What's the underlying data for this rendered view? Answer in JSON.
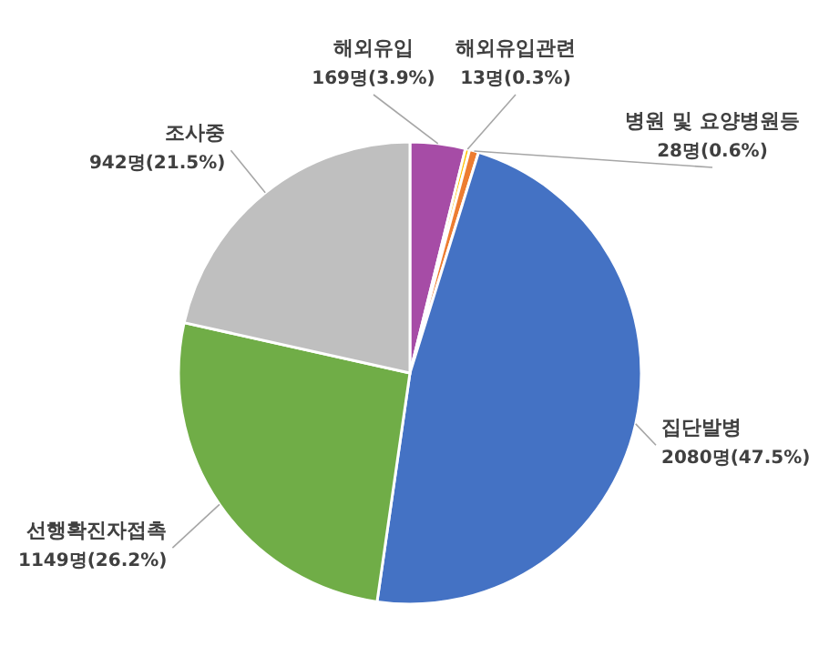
{
  "chart_data": {
    "type": "pie",
    "categories": [
      "해외유입",
      "해외유입관련",
      "병원 및 요양병원등",
      "집단발병",
      "선행확진자접촉",
      "조사중"
    ],
    "values": [
      169,
      13,
      28,
      2080,
      1149,
      942
    ],
    "value_labels": [
      "169명(3.9%)",
      "13명(0.3%)",
      "28명(0.6%)",
      "2080명(47.5%)",
      "1149명(26.2%)",
      "942명(21.5%)"
    ],
    "colors": [
      "#a64ca6",
      "#ffc000",
      "#ed7d31",
      "#4472c4",
      "#70ad47",
      "#bfbfbf"
    ]
  }
}
